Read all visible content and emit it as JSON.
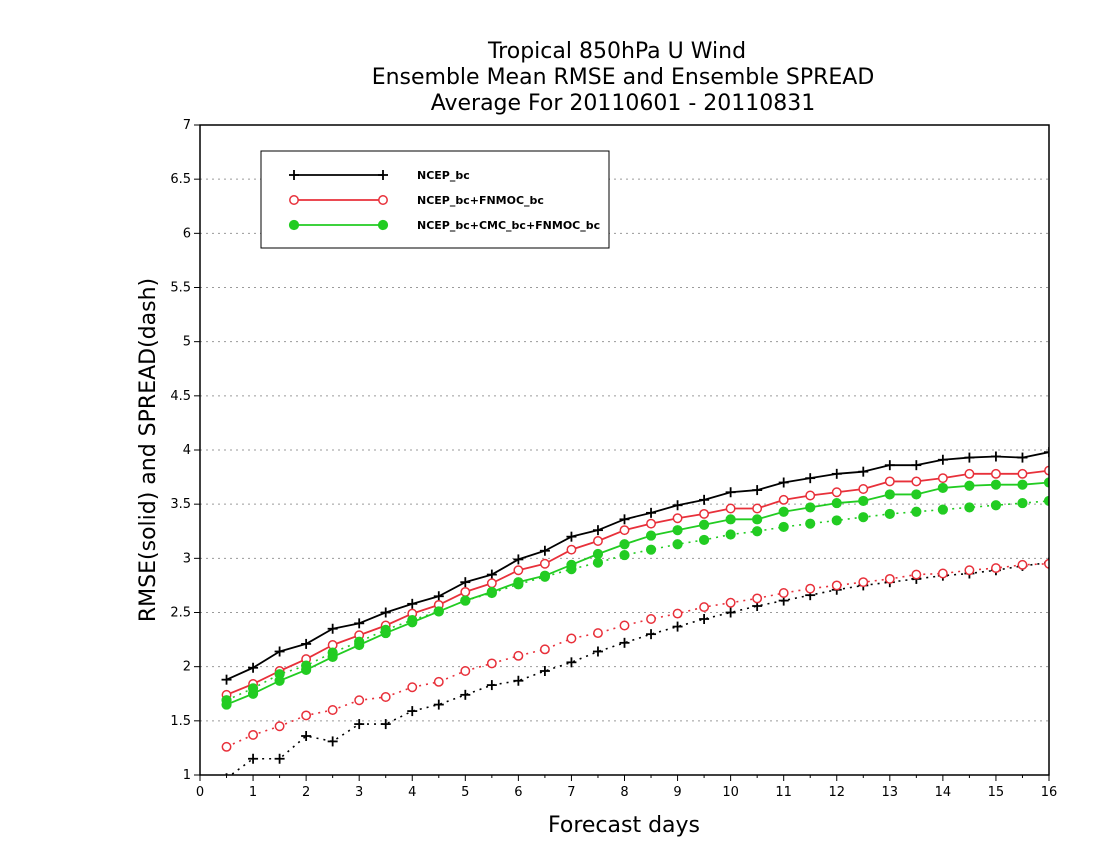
{
  "chart_data": {
    "type": "line",
    "title": [
      "Tropical 850hPa U Wind",
      "Ensemble Mean RMSE and Ensemble SPREAD",
      "Average For 20110601 - 20110831"
    ],
    "xlabel": "Forecast days",
    "ylabel": "RMSE(solid) and SPREAD(dash)",
    "xlim": [
      0,
      16
    ],
    "ylim": [
      1,
      7
    ],
    "xticks": [
      "0",
      "1",
      "2",
      "3",
      "4",
      "5",
      "6",
      "7",
      "8",
      "9",
      "10",
      "11",
      "12",
      "13",
      "14",
      "15",
      "16"
    ],
    "yticks": [
      "1",
      "1.5",
      "2",
      "2.5",
      "3",
      "3.5",
      "4",
      "4.5",
      "5",
      "5.5",
      "6",
      "6.5",
      "7"
    ],
    "grid": true,
    "legend_position": "top-left",
    "x": [
      0.5,
      1,
      1.5,
      2,
      2.5,
      3,
      3.5,
      4,
      4.5,
      5,
      5.5,
      6,
      6.5,
      7,
      7.5,
      8,
      8.5,
      9,
      9.5,
      10,
      10.5,
      11,
      11.5,
      12,
      12.5,
      13,
      13.5,
      14,
      14.5,
      15,
      15.5,
      16
    ],
    "series": [
      {
        "name": "NCEP_bc",
        "color": "#000000",
        "marker": "plus",
        "rmse": [
          1.88,
          1.99,
          2.14,
          2.21,
          2.35,
          2.4,
          2.5,
          2.58,
          2.65,
          2.78,
          2.85,
          2.99,
          3.07,
          3.2,
          3.26,
          3.36,
          3.42,
          3.49,
          3.54,
          3.61,
          3.63,
          3.7,
          3.74,
          3.78,
          3.8,
          3.86,
          3.86,
          3.91,
          3.93,
          3.94,
          3.93,
          3.98
        ],
        "spread": [
          0.97,
          1.15,
          1.15,
          1.36,
          1.31,
          1.47,
          1.47,
          1.59,
          1.65,
          1.74,
          1.83,
          1.87,
          1.96,
          2.04,
          2.14,
          2.22,
          2.3,
          2.37,
          2.44,
          2.5,
          2.56,
          2.61,
          2.66,
          2.71,
          2.75,
          2.78,
          2.81,
          2.84,
          2.86,
          2.89,
          2.93,
          2.96
        ]
      },
      {
        "name": "NCEP_bc+FNMOC_bc",
        "color": "#e8303a",
        "marker": "open-circle",
        "rmse": [
          1.74,
          1.84,
          1.96,
          2.07,
          2.2,
          2.29,
          2.38,
          2.49,
          2.57,
          2.69,
          2.77,
          2.89,
          2.95,
          3.08,
          3.16,
          3.26,
          3.32,
          3.37,
          3.41,
          3.46,
          3.46,
          3.54,
          3.58,
          3.61,
          3.64,
          3.71,
          3.71,
          3.74,
          3.78,
          3.78,
          3.78,
          3.81
        ],
        "spread": [
          1.26,
          1.37,
          1.45,
          1.55,
          1.6,
          1.69,
          1.72,
          1.81,
          1.86,
          1.96,
          2.03,
          2.1,
          2.16,
          2.26,
          2.31,
          2.38,
          2.44,
          2.49,
          2.55,
          2.59,
          2.63,
          2.68,
          2.72,
          2.75,
          2.78,
          2.81,
          2.85,
          2.86,
          2.89,
          2.91,
          2.94,
          2.95
        ]
      },
      {
        "name": "NCEP_bc+CMC_bc+FNMOC_bc",
        "color": "#22cc22",
        "marker": "filled-circle",
        "rmse": [
          1.65,
          1.75,
          1.87,
          1.97,
          2.09,
          2.2,
          2.31,
          2.41,
          2.51,
          2.61,
          2.69,
          2.78,
          2.84,
          2.94,
          3.04,
          3.13,
          3.21,
          3.26,
          3.31,
          3.36,
          3.36,
          3.43,
          3.47,
          3.51,
          3.53,
          3.59,
          3.59,
          3.65,
          3.67,
          3.68,
          3.68,
          3.7
        ],
        "spread": [
          1.69,
          1.8,
          1.93,
          2.01,
          2.13,
          2.23,
          2.34,
          2.43,
          2.51,
          2.61,
          2.68,
          2.76,
          2.83,
          2.9,
          2.96,
          3.03,
          3.08,
          3.13,
          3.17,
          3.22,
          3.25,
          3.29,
          3.32,
          3.35,
          3.38,
          3.41,
          3.43,
          3.45,
          3.47,
          3.49,
          3.51,
          3.53
        ]
      }
    ]
  }
}
